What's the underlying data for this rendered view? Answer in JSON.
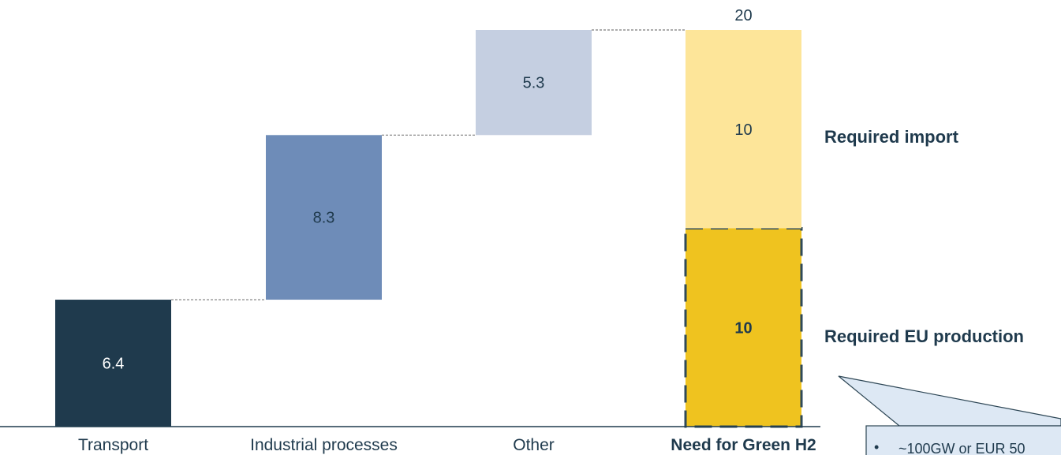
{
  "chart_data": {
    "type": "bar",
    "subtype": "waterfall",
    "categories": [
      "Transport",
      "Industrial processes",
      "Other",
      "Need for Green H2"
    ],
    "steps": [
      {
        "category": "Transport",
        "value": 6.4,
        "label": "6.4",
        "color": "#1f3a4d",
        "label_color": "#ffffff"
      },
      {
        "category": "Industrial processes",
        "value": 8.3,
        "label": "8.3",
        "color": "#6e8cb8",
        "label_color": "#1f3a4d"
      },
      {
        "category": "Other",
        "value": 5.3,
        "label": "5.3",
        "color": "#c5cfe1",
        "label_color": "#1f3a4d"
      }
    ],
    "total": {
      "category": "Need for Green H2",
      "value": 20,
      "label": "20",
      "segments": [
        {
          "name": "Required EU production",
          "value": 10,
          "label": "10",
          "color": "#efc31f",
          "dashed_border": true
        },
        {
          "name": "Required import",
          "value": 10,
          "label": "10",
          "color": "#fde599",
          "dashed_border": false
        }
      ]
    },
    "ylim": [
      0,
      20
    ],
    "grid": false,
    "title": "",
    "xlabel": "",
    "ylabel": "",
    "callout": {
      "text": "~100GW or EUR 50",
      "bullet": "•",
      "fill": "#dde8f4",
      "border": "#2d4655"
    },
    "colors": {
      "text": "#1f3a4d",
      "axis": "#1f3a4d",
      "connector": "#7a7a7a"
    }
  }
}
